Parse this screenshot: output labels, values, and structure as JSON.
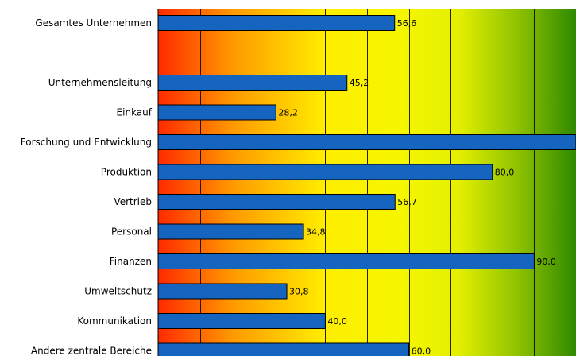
{
  "chart_data": {
    "type": "bar",
    "orientation": "horizontal",
    "title": "",
    "xlabel": "",
    "ylabel": "",
    "categories": [
      "Gesamtes Unternehmen",
      "",
      "Unternehmensleitung",
      "Einkauf",
      "Forschung und Entwicklung",
      "Produktion",
      "Vertrieb",
      "Personal",
      "Finanzen",
      "Umweltschutz",
      "Kommunikation",
      "Andere zentrale Bereiche"
    ],
    "values": [
      56.6,
      null,
      45.2,
      28.2,
      100,
      80.0,
      56.7,
      34.8,
      90.0,
      30.8,
      40.0,
      60.0
    ],
    "value_labels": [
      "56,6",
      "",
      "45,2",
      "28,2",
      "",
      "80,0",
      "56,7",
      "34,8",
      "90,0",
      "30,8",
      "40,0",
      "60,0"
    ],
    "xlim": [
      0,
      100
    ],
    "grid": true,
    "legend": "none",
    "colors": {
      "bar": "#1565C0",
      "bar_edge": "#000000",
      "gradient": [
        "#ff2a00",
        "#ff9a00",
        "#ffee00",
        "#f6f600",
        "#e3ef00",
        "#8fc200",
        "#2f8a00"
      ],
      "grid": "#000000"
    }
  }
}
